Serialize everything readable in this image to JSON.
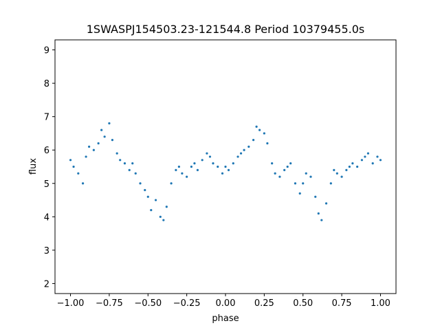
{
  "chart_data": {
    "type": "scatter",
    "title": "1SWASPJ154503.23-121544.8 Period 10379455.0s",
    "xlabel": "phase",
    "ylabel": "flux",
    "xlim": [
      -1.1,
      1.1
    ],
    "ylim": [
      1.7,
      9.3
    ],
    "grid": false,
    "legend": "none",
    "x_ticks": [
      -1.0,
      -0.75,
      -0.5,
      -0.25,
      0.0,
      0.25,
      0.5,
      0.75,
      1.0
    ],
    "x_tick_labels": [
      "−1.00",
      "−0.75",
      "−0.50",
      "−0.25",
      "0.00",
      "0.25",
      "0.50",
      "0.75",
      "1.00"
    ],
    "y_ticks": [
      2,
      3,
      4,
      5,
      6,
      7,
      8,
      9
    ],
    "y_tick_labels": [
      "2",
      "3",
      "4",
      "5",
      "6",
      "7",
      "8",
      "9"
    ],
    "series": [
      {
        "color": "#1f77b4",
        "x": [
          -1.0,
          -0.98,
          -0.95,
          -0.92,
          -0.9,
          -0.88,
          -0.85,
          -0.82,
          -0.8,
          -0.78,
          -0.75,
          -0.73,
          -0.7,
          -0.68,
          -0.65,
          -0.62,
          -0.6,
          -0.58,
          -0.55,
          -0.52,
          -0.5,
          -0.48,
          -0.45,
          -0.42,
          -0.4,
          -0.38,
          -0.35,
          -0.32,
          -0.3,
          -0.28,
          -0.25,
          -0.22,
          -0.2,
          -0.18,
          -0.15,
          -0.12,
          -0.1,
          -0.08,
          -0.05,
          -0.02,
          0.0,
          0.02,
          0.05,
          0.08,
          0.1,
          0.12,
          0.15,
          0.18,
          0.2,
          0.22,
          0.25,
          0.27,
          0.3,
          0.32,
          0.35,
          0.38,
          0.4,
          0.42,
          0.45,
          0.48,
          0.5,
          0.52,
          0.55,
          0.58,
          0.6,
          0.62,
          0.65,
          0.68,
          0.7,
          0.72,
          0.75,
          0.78,
          0.8,
          0.82,
          0.85,
          0.88,
          0.9,
          0.92,
          0.95,
          0.98,
          1.0
        ],
        "y": [
          5.7,
          5.5,
          5.3,
          5.0,
          5.8,
          6.1,
          6.0,
          6.2,
          6.6,
          6.4,
          6.8,
          6.3,
          5.9,
          5.7,
          5.6,
          5.4,
          5.6,
          5.3,
          5.0,
          4.8,
          4.6,
          4.2,
          4.5,
          4.0,
          3.9,
          4.3,
          5.0,
          5.4,
          5.5,
          5.3,
          5.2,
          5.5,
          5.6,
          5.4,
          5.7,
          5.9,
          5.8,
          5.6,
          5.5,
          5.3,
          5.5,
          5.4,
          5.6,
          5.8,
          5.9,
          6.0,
          6.1,
          6.3,
          6.7,
          6.6,
          6.5,
          6.2,
          5.6,
          5.3,
          5.2,
          5.4,
          5.5,
          5.6,
          5.0,
          4.7,
          5.0,
          5.3,
          5.2,
          4.6,
          4.1,
          3.9,
          4.4,
          5.0,
          5.4,
          5.3,
          5.2,
          5.4,
          5.5,
          5.6,
          5.5,
          5.7,
          5.8,
          5.9,
          5.6,
          5.8,
          5.7
        ]
      }
    ]
  }
}
